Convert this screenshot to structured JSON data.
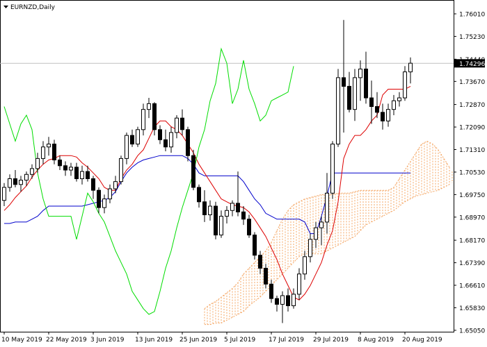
{
  "chart_data": {
    "type": "candlestick",
    "symbol": "EURNZD",
    "timeframe": "Daily",
    "title": "EURNZD,Daily",
    "ylim": [
      1.65,
      1.7649
    ],
    "y_ticks": [
      1.7601,
      1.7523,
      1.7444,
      1.7367,
      1.7287,
      1.7209,
      1.7131,
      1.7053,
      1.6975,
      1.6897,
      1.6817,
      1.6739,
      1.6661,
      1.6583,
      1.6505
    ],
    "y_tick_labels": [
      "1.76010",
      "1.75230",
      "1.74440",
      "1.73670",
      "1.72870",
      "1.72090",
      "1.71310",
      "1.70530",
      "1.69750",
      "1.68970",
      "1.68170",
      "1.67390",
      "1.66610",
      "1.65830",
      "1.65050"
    ],
    "x_tick_labels": [
      "10 May 2019",
      "22 May 2019",
      "3 Jun 2019",
      "13 Jun 2019",
      "25 Jun 2019",
      "5 Jul 2019",
      "17 Jul 2019",
      "29 Jul 2019",
      "8 Aug 2019",
      "20 Aug 2019"
    ],
    "x_tick_index": [
      0,
      8,
      16,
      24,
      32,
      40,
      48,
      56,
      64,
      72
    ],
    "current_price": 1.74296,
    "current_price_label": "1.74296",
    "indicator": "Ichimoku Kinko Hyo",
    "colors": {
      "up_candle": "#ffffff",
      "down_candle": "#000000",
      "tenkan": "#dd0000",
      "kijun": "#0000cc",
      "chikou": "#00dd00",
      "cloud": "#f4a460",
      "price_line": "#c0c0c0"
    },
    "candles": [
      [
        1.6955,
        1.7015,
        1.6935,
        1.7
      ],
      [
        1.7,
        1.7045,
        1.6985,
        1.703
      ],
      [
        1.703,
        1.706,
        1.7,
        1.701
      ],
      [
        1.701,
        1.704,
        1.6985,
        1.7025
      ],
      [
        1.7025,
        1.7055,
        1.7005,
        1.7045
      ],
      [
        1.7045,
        1.708,
        1.703,
        1.7065
      ],
      [
        1.7065,
        1.712,
        1.705,
        1.71
      ],
      [
        1.71,
        1.716,
        1.708,
        1.714
      ],
      [
        1.714,
        1.7175,
        1.711,
        1.715
      ],
      [
        1.715,
        1.7165,
        1.708,
        1.7095
      ],
      [
        1.7095,
        1.711,
        1.706,
        1.7075
      ],
      [
        1.7075,
        1.709,
        1.704,
        1.706
      ],
      [
        1.706,
        1.7085,
        1.704,
        1.707
      ],
      [
        1.707,
        1.7085,
        1.702,
        1.703
      ],
      [
        1.703,
        1.7075,
        1.701,
        1.7055
      ],
      [
        1.7055,
        1.7075,
        1.702,
        1.703
      ],
      [
        1.703,
        1.704,
        1.696,
        1.699
      ],
      [
        1.699,
        1.7,
        1.691,
        1.693
      ],
      [
        1.693,
        1.6975,
        1.691,
        1.696
      ],
      [
        1.696,
        1.701,
        1.6945,
        1.6995
      ],
      [
        1.6995,
        1.704,
        1.698,
        1.702
      ],
      [
        1.702,
        1.711,
        1.701,
        1.71
      ],
      [
        1.71,
        1.719,
        1.708,
        1.718
      ],
      [
        1.718,
        1.72,
        1.714,
        1.715
      ],
      [
        1.715,
        1.721,
        1.714,
        1.72
      ],
      [
        1.72,
        1.729,
        1.718,
        1.727
      ],
      [
        1.727,
        1.731,
        1.724,
        1.729
      ],
      [
        1.729,
        1.7295,
        1.718,
        1.72
      ],
      [
        1.72,
        1.7215,
        1.715,
        1.7165
      ],
      [
        1.7165,
        1.72,
        1.7125,
        1.714
      ],
      [
        1.714,
        1.721,
        1.712,
        1.719
      ],
      [
        1.719,
        1.725,
        1.717,
        1.724
      ],
      [
        1.724,
        1.727,
        1.718,
        1.72
      ],
      [
        1.72,
        1.721,
        1.709,
        1.711
      ],
      [
        1.711,
        1.713,
        1.699,
        1.7
      ],
      [
        1.7,
        1.701,
        1.693,
        1.695
      ],
      [
        1.695,
        1.699,
        1.688,
        1.6905
      ],
      [
        1.6905,
        1.6955,
        1.6885,
        1.6935
      ],
      [
        1.6935,
        1.695,
        1.682,
        1.6835
      ],
      [
        1.6835,
        1.692,
        1.6825,
        1.69
      ],
      [
        1.69,
        1.6935,
        1.6875,
        1.692
      ],
      [
        1.692,
        1.6955,
        1.69,
        1.6945
      ],
      [
        1.6945,
        1.7055,
        1.69,
        1.6915
      ],
      [
        1.6915,
        1.6935,
        1.687,
        1.689
      ],
      [
        1.689,
        1.6905,
        1.6825,
        1.6835
      ],
      [
        1.6835,
        1.6845,
        1.675,
        1.6765
      ],
      [
        1.6765,
        1.678,
        1.67,
        1.672
      ],
      [
        1.672,
        1.6735,
        1.665,
        1.6665
      ],
      [
        1.6665,
        1.668,
        1.66,
        1.6615
      ],
      [
        1.6615,
        1.6625,
        1.657,
        1.6595
      ],
      [
        1.6595,
        1.664,
        1.653,
        1.6625
      ],
      [
        1.6625,
        1.665,
        1.657,
        1.659
      ],
      [
        1.659,
        1.665,
        1.658,
        1.663
      ],
      [
        1.663,
        1.672,
        1.661,
        1.67
      ],
      [
        1.67,
        1.678,
        1.668,
        1.676
      ],
      [
        1.676,
        1.684,
        1.674,
        1.682
      ],
      [
        1.682,
        1.688,
        1.679,
        1.686
      ],
      [
        1.686,
        1.69,
        1.68,
        1.688
      ],
      [
        1.688,
        1.705,
        1.684,
        1.698
      ],
      [
        1.698,
        1.716,
        1.696,
        1.715
      ],
      [
        1.715,
        1.741,
        1.714,
        1.738
      ],
      [
        1.738,
        1.758,
        1.719,
        1.735
      ],
      [
        1.735,
        1.74,
        1.726,
        1.727
      ],
      [
        1.727,
        1.741,
        1.723,
        1.738
      ],
      [
        1.738,
        1.744,
        1.73,
        1.741
      ],
      [
        1.741,
        1.747,
        1.729,
        1.731
      ],
      [
        1.731,
        1.737,
        1.722,
        1.728
      ],
      [
        1.728,
        1.733,
        1.724,
        1.726
      ],
      [
        1.726,
        1.729,
        1.72,
        1.723
      ],
      [
        1.723,
        1.729,
        1.721,
        1.727
      ],
      [
        1.727,
        1.732,
        1.725,
        1.73
      ],
      [
        1.73,
        1.733,
        1.728,
        1.731
      ],
      [
        1.731,
        1.742,
        1.73,
        1.74
      ],
      [
        1.74,
        1.745,
        1.736,
        1.743
      ]
    ],
    "tenkan": [
      1.692,
      1.694,
      1.6965,
      1.6985,
      1.7005,
      1.7035,
      1.706,
      1.708,
      1.7095,
      1.71,
      1.711,
      1.711,
      1.711,
      1.7105,
      1.7085,
      1.707,
      1.705,
      1.703,
      1.7,
      1.699,
      1.699,
      1.703,
      1.706,
      1.708,
      1.711,
      1.713,
      1.717,
      1.721,
      1.723,
      1.723,
      1.721,
      1.72,
      1.718,
      1.715,
      1.712,
      1.708,
      1.705,
      1.702,
      1.699,
      1.696,
      1.695,
      1.694,
      1.6935,
      1.693,
      1.6915,
      1.689,
      1.686,
      1.683,
      1.679,
      1.675,
      1.67,
      1.666,
      1.662,
      1.661,
      1.663,
      1.666,
      1.67,
      1.674,
      1.68,
      1.685,
      1.695,
      1.71,
      1.715,
      1.718,
      1.718,
      1.72,
      1.723,
      1.725,
      1.732,
      1.734,
      1.734,
      1.734,
      1.734,
      1.735
    ],
    "kijun": [
      1.6875,
      1.6875,
      1.688,
      1.688,
      1.688,
      1.689,
      1.69,
      1.692,
      1.6935,
      1.6935,
      1.6935,
      1.6935,
      1.6935,
      1.6935,
      1.6935,
      1.694,
      1.6945,
      1.695,
      1.6955,
      1.6965,
      1.6985,
      1.702,
      1.705,
      1.707,
      1.7085,
      1.7095,
      1.71,
      1.7105,
      1.711,
      1.711,
      1.711,
      1.711,
      1.711,
      1.71,
      1.708,
      1.705,
      1.704,
      1.704,
      1.704,
      1.704,
      1.704,
      1.704,
      1.704,
      1.702,
      1.699,
      1.696,
      1.694,
      1.691,
      1.69,
      1.689,
      1.689,
      1.689,
      1.689,
      1.689,
      1.688,
      1.684,
      1.684,
      1.69,
      1.697,
      1.705,
      1.705,
      1.705,
      1.705,
      1.705,
      1.705,
      1.705,
      1.705,
      1.705,
      1.705,
      1.705,
      1.705,
      1.705,
      1.705,
      1.705
    ],
    "chikou": [
      1.728,
      1.722,
      1.716,
      1.722,
      1.725,
      1.72,
      1.705,
      1.696,
      1.69,
      1.69,
      1.69,
      1.69,
      1.69,
      1.682,
      1.69,
      1.698,
      1.695,
      1.691,
      1.688,
      1.683,
      1.678,
      1.674,
      1.67,
      1.664,
      1.661,
      1.658,
      1.656,
      1.657,
      1.664,
      1.672,
      1.678,
      1.686,
      1.693,
      1.699,
      1.705,
      1.714,
      1.72,
      1.73,
      1.736,
      1.748,
      1.743,
      1.729,
      1.734,
      1.744,
      1.734,
      1.729,
      1.723,
      1.725,
      1.73,
      1.731,
      1.732,
      1.733,
      1.742
    ],
    "senkou_a_shift": 26,
    "senkou_a": [
      1.658,
      1.6595,
      1.6605,
      1.662,
      1.6635,
      1.665,
      1.667,
      1.67,
      1.672,
      1.674,
      1.676,
      1.678,
      1.681,
      1.685,
      1.689,
      1.692,
      1.694,
      1.695,
      1.696,
      1.6965,
      1.697,
      1.6975,
      1.6975,
      1.6975,
      1.698,
      1.698,
      1.698,
      1.6985,
      1.699,
      1.699,
      1.699,
      1.699,
      1.699,
      1.699,
      1.7,
      1.703,
      1.706,
      1.709,
      1.712,
      1.715,
      1.716,
      1.715,
      1.713,
      1.71,
      1.707,
      1.704,
      1.702,
      1.7,
      1.699,
      1.699,
      1.7,
      1.701,
      1.701,
      1.7,
      1.698,
      1.696,
      1.694,
      1.69,
      1.687,
      1.684,
      1.682,
      1.679,
      1.677,
      1.676
    ],
    "senkou_b": [
      1.6525,
      1.6525,
      1.653,
      1.653,
      1.654,
      1.655,
      1.656,
      1.657,
      1.659,
      1.6605,
      1.662,
      1.664,
      1.666,
      1.668,
      1.67,
      1.672,
      1.674,
      1.676,
      1.677,
      1.677,
      1.677,
      1.677,
      1.678,
      1.679,
      1.68,
      1.681,
      1.682,
      1.683,
      1.685,
      1.687,
      1.688,
      1.689,
      1.69,
      1.691,
      1.692,
      1.6935,
      1.695,
      1.696,
      1.697,
      1.6975,
      1.698,
      1.6985,
      1.699,
      1.7,
      1.701,
      1.702,
      1.703,
      1.704,
      1.705,
      1.705,
      1.705,
      1.704,
      1.702,
      1.7,
      1.697,
      1.695,
      1.694,
      1.693,
      1.693,
      1.692,
      1.691,
      1.691,
      1.691,
      1.691
    ]
  }
}
